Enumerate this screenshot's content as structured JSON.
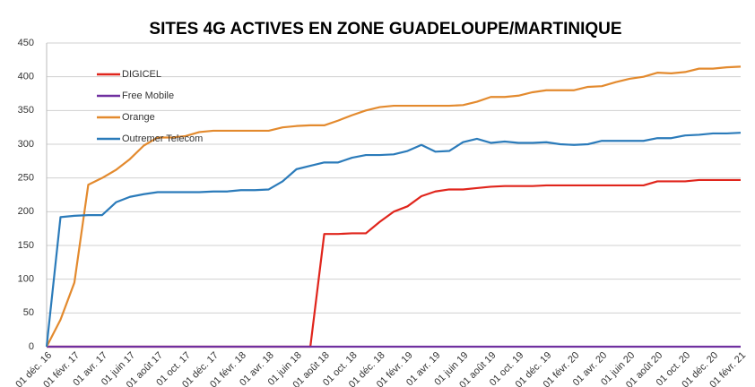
{
  "chart_data": {
    "type": "line",
    "title": "SITES 4G ACTIVES EN ZONE GUADELOUPE/MARTINIQUE",
    "categories": [
      "01 déc. 16",
      null,
      "01 févr. 17",
      null,
      "01 avr. 17",
      null,
      "01 juin 17",
      null,
      "01 août 17",
      null,
      "01 oct. 17",
      null,
      "01 déc. 17",
      null,
      "01 févr. 18",
      null,
      "01 avr. 18",
      null,
      "01 juin 18",
      null,
      "01 août 18",
      null,
      "01 oct. 18",
      null,
      "01 déc. 18",
      null,
      "01 févr. 19",
      null,
      "01 avr. 19",
      null,
      "01 juin 19",
      null,
      "01 août 19",
      null,
      "01 oct. 19",
      null,
      "01 déc. 19",
      null,
      "01 févr. 20",
      null,
      "01 avr. 20",
      null,
      "01 juin 20",
      null,
      "01 août 20",
      null,
      "01 oct. 20",
      null,
      "01 déc. 20",
      null,
      "01 févr. 21"
    ],
    "series": [
      {
        "name": "DIGICEL",
        "color": "#e0251c",
        "values": [
          0,
          0,
          0,
          0,
          0,
          0,
          0,
          0,
          0,
          0,
          0,
          0,
          0,
          0,
          0,
          0,
          0,
          0,
          0,
          0,
          167,
          167,
          168,
          168,
          185,
          200,
          208,
          223,
          230,
          233,
          233,
          235,
          237,
          238,
          238,
          238,
          239,
          239,
          239,
          239,
          239,
          239,
          239,
          239,
          245,
          245,
          245,
          247,
          247,
          247,
          247
        ]
      },
      {
        "name": "Free Mobile",
        "color": "#7030a0",
        "values": [
          0,
          0,
          0,
          0,
          0,
          0,
          0,
          0,
          0,
          0,
          0,
          0,
          0,
          0,
          0,
          0,
          0,
          0,
          0,
          0,
          0,
          0,
          0,
          0,
          0,
          0,
          0,
          0,
          0,
          0,
          0,
          0,
          0,
          0,
          0,
          0,
          0,
          0,
          0,
          0,
          0,
          0,
          0,
          0,
          0,
          0,
          0,
          0,
          0,
          0,
          0
        ]
      },
      {
        "name": "Orange",
        "color": "#e38a2e",
        "values": [
          0,
          40,
          95,
          240,
          250,
          262,
          278,
          298,
          310,
          310,
          312,
          318,
          320,
          320,
          320,
          320,
          320,
          325,
          327,
          328,
          328,
          335,
          343,
          350,
          355,
          357,
          357,
          357,
          357,
          357,
          358,
          363,
          370,
          370,
          372,
          377,
          380,
          380,
          380,
          385,
          386,
          392,
          397,
          400,
          406,
          405,
          407,
          412,
          412,
          414,
          415
        ]
      },
      {
        "name": "Outremer Telecom",
        "color": "#2b7bba",
        "values": [
          0,
          192,
          194,
          195,
          195,
          214,
          222,
          226,
          229,
          229,
          229,
          229,
          230,
          230,
          232,
          232,
          233,
          245,
          263,
          268,
          273,
          273,
          280,
          284,
          284,
          285,
          290,
          299,
          289,
          290,
          303,
          308,
          302,
          304,
          302,
          302,
          303,
          300,
          299,
          300,
          305,
          305,
          305,
          305,
          309,
          309,
          313,
          314,
          316,
          316,
          317
        ]
      }
    ],
    "ylim": [
      0,
      450
    ],
    "yticks": [
      0,
      50,
      100,
      150,
      200,
      250,
      300,
      350,
      400,
      450
    ],
    "grid": true,
    "legend": "upper left"
  }
}
